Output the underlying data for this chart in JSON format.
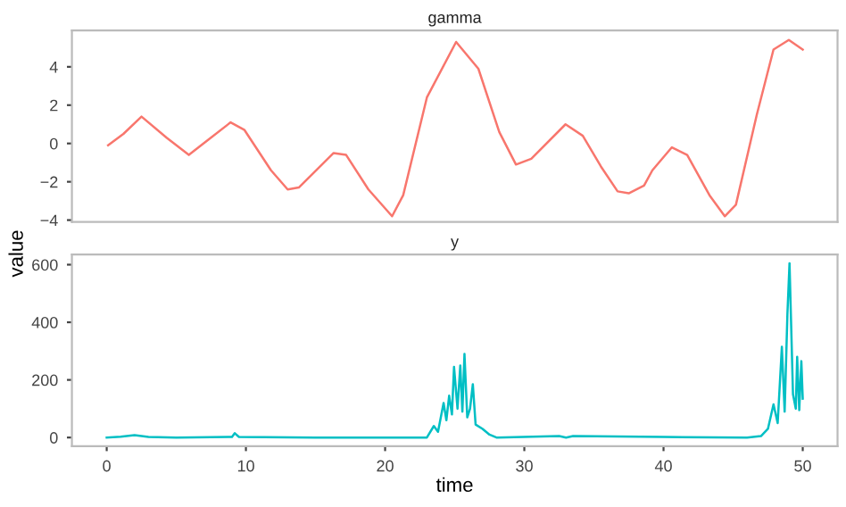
{
  "chart_data": [
    {
      "type": "line",
      "title": "gamma",
      "ylabel": "value",
      "xlim": [
        -2.5,
        52.5
      ],
      "xticks": [
        0,
        10,
        20,
        30,
        40,
        50
      ],
      "ylim": [
        -4.1,
        5.9
      ],
      "yticks": [
        -4,
        -2,
        0,
        2,
        4
      ],
      "tick_labels": "y",
      "grid": false,
      "series": [
        {
          "color": "#f8766d",
          "x": [
            0.1,
            1.2,
            2.5,
            4.3,
            5.9,
            7.3,
            8.9,
            9.9,
            11.8,
            13.0,
            13.8,
            16.3,
            17.2,
            18.8,
            20.5,
            21.3,
            23.0,
            25.1,
            26.7,
            28.2,
            29.4,
            30.5,
            32.96,
            34.2,
            35.5,
            36.7,
            37.5,
            38.6,
            39.2,
            40.6,
            41.7,
            43.3,
            44.4,
            45.2,
            46.7,
            47.9,
            49.0,
            50.0
          ],
          "values": [
            -0.1,
            0.5,
            1.4,
            0.3,
            -0.6,
            0.2,
            1.1,
            0.7,
            -1.4,
            -2.4,
            -2.3,
            -0.5,
            -0.6,
            -2.4,
            -3.8,
            -2.7,
            2.4,
            5.3,
            3.9,
            0.6,
            -1.1,
            -0.8,
            1.0,
            0.4,
            -1.2,
            -2.5,
            -2.6,
            -2.2,
            -1.4,
            -0.2,
            -0.6,
            -2.7,
            -3.8,
            -3.2,
            1.5,
            4.9,
            5.4,
            4.9
          ]
        }
      ]
    },
    {
      "type": "line",
      "title": "y",
      "xlabel": "time",
      "xlim": [
        -2.5,
        52.5
      ],
      "xticks": [
        0,
        10,
        20,
        30,
        40,
        50
      ],
      "ylim": [
        -30,
        635
      ],
      "yticks": [
        0,
        200,
        400,
        600
      ],
      "grid": false,
      "series": [
        {
          "color": "#00bfc4",
          "x": [
            0,
            1,
            2,
            3,
            5,
            9,
            9.2,
            9.5,
            15,
            23,
            23.5,
            23.8,
            24.2,
            24.4,
            24.6,
            24.8,
            24.95,
            25.2,
            25.4,
            25.55,
            25.7,
            25.9,
            26.1,
            26.3,
            26.5,
            27,
            27.5,
            28,
            32.5,
            33,
            33.5,
            40,
            46,
            47,
            47.5,
            47.9,
            48.2,
            48.5,
            48.7,
            48.9,
            49.05,
            49.3,
            49.5,
            49.6,
            49.75,
            49.9,
            50.0
          ],
          "values": [
            0,
            3,
            8,
            2,
            0,
            2,
            15,
            2,
            0,
            0,
            40,
            20,
            120,
            60,
            145,
            80,
            245,
            100,
            250,
            90,
            290,
            70,
            100,
            185,
            45,
            30,
            10,
            0,
            5,
            0,
            5,
            2,
            0,
            5,
            30,
            115,
            50,
            315,
            90,
            430,
            605,
            150,
            100,
            280,
            95,
            265,
            135
          ]
        }
      ]
    }
  ]
}
